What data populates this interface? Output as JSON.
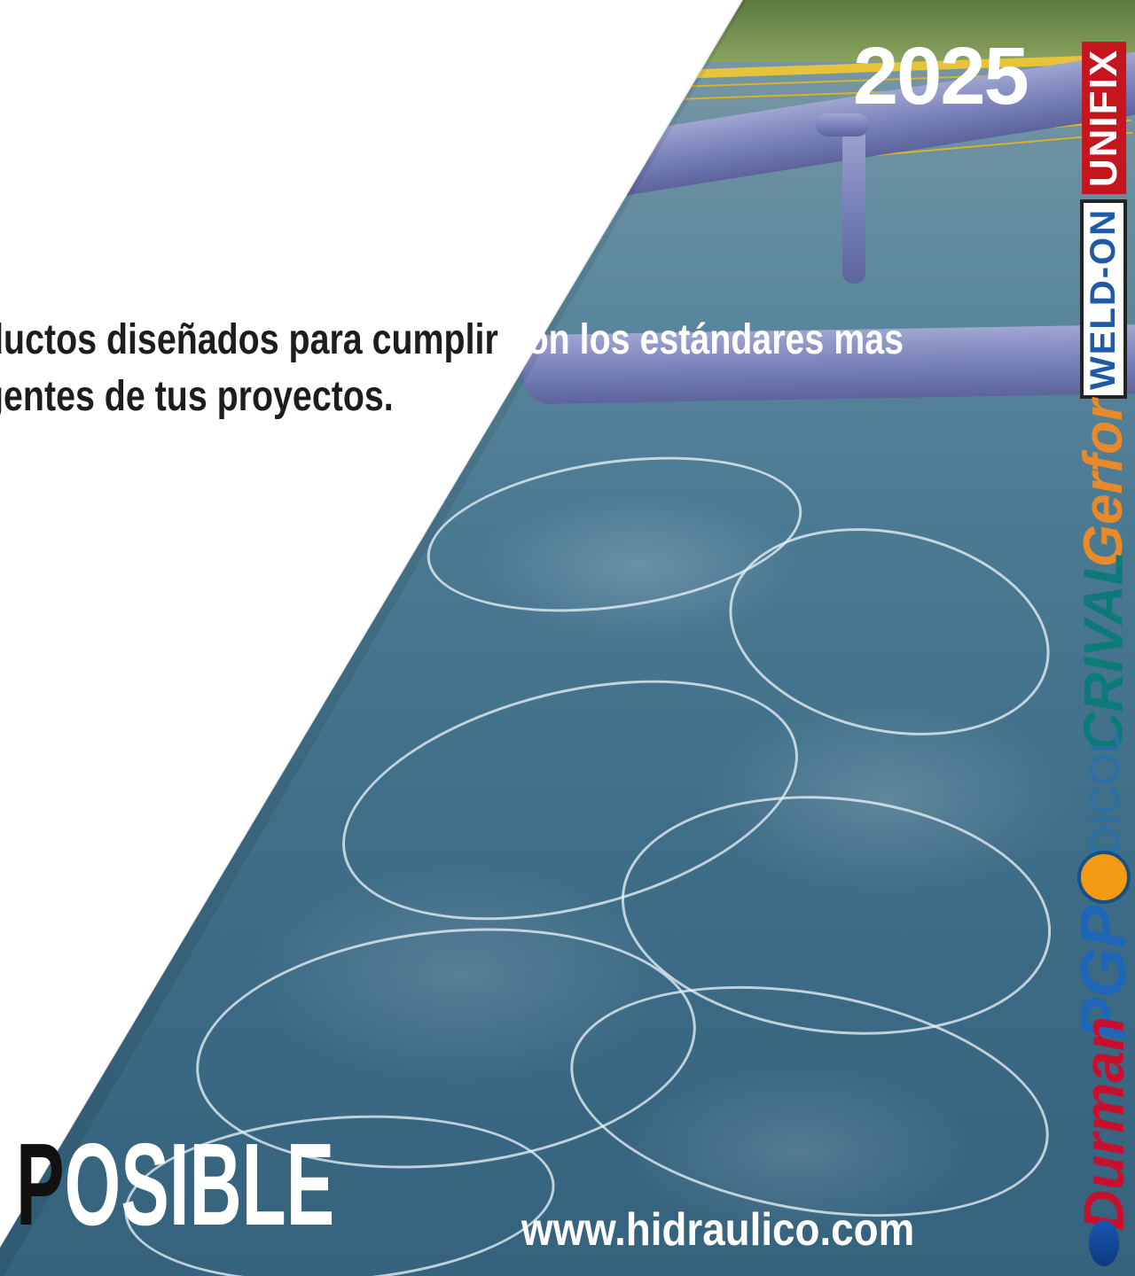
{
  "year": "2025",
  "tagline": {
    "line1_dark": "ductos diseñados para cumplir",
    "line1_light": " con los estándares mas",
    "line2": "gentes de tus proyectos."
  },
  "headline": {
    "first_letter": "P",
    "rest": "OSIBLE"
  },
  "website": "www.hidraulico.com",
  "brands": {
    "unifix": "UNIFIX",
    "weldon": "WELD-ON",
    "gerfor": "Gerfor",
    "crival": "CRIVAL",
    "dicol": "DICOL",
    "pgp": "PGP",
    "durman": "Durman"
  },
  "colors": {
    "water": "#4b7a93",
    "pipe": "#7a82bb",
    "railing": "#e7c33a",
    "text_dark": "#1d1d1d",
    "text_light": "#ffffff"
  }
}
